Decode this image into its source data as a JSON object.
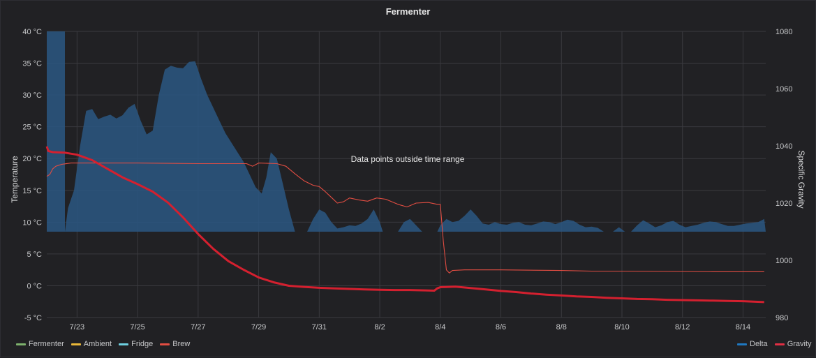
{
  "panel": {
    "title": "Fermenter"
  },
  "chart_data": {
    "type": "line",
    "title": "Fermenter",
    "annotation": "Data points outside time range",
    "x_axis": {
      "type": "time",
      "range": [
        "2020-07-22",
        "2020-08-15"
      ],
      "ticks": [
        "7/23",
        "7/25",
        "7/27",
        "7/29",
        "7/31",
        "8/2",
        "8/4",
        "8/6",
        "8/8",
        "8/10",
        "8/12",
        "8/14"
      ]
    },
    "y_left": {
      "label": "Temperature",
      "unit": "°C",
      "range": [
        -5,
        40
      ],
      "ticks": [
        "40 °C",
        "35 °C",
        "30 °C",
        "25 °C",
        "20 °C",
        "15 °C",
        "10 °C",
        "5 °C",
        "0 °C",
        "-5 °C"
      ]
    },
    "y_right": {
      "label": "Specific Gravity",
      "range": [
        980,
        1080
      ],
      "ticks": [
        "1080",
        "1060",
        "1040",
        "1020",
        "1000",
        "980"
      ]
    },
    "grid": true,
    "legend_left": [
      {
        "name": "Fermenter",
        "color": "#7eb26d"
      },
      {
        "name": "Ambient",
        "color": "#eab839"
      },
      {
        "name": "Fridge",
        "color": "#6ed0e0"
      },
      {
        "name": "Brew",
        "color": "#e24d42"
      }
    ],
    "legend_right": [
      {
        "name": "Delta",
        "color": "#1f78c1"
      },
      {
        "name": "Gravity",
        "color": "#e02f44"
      }
    ],
    "series": [
      {
        "name": "Delta",
        "axis": "left",
        "kind": "area",
        "base": 8.5,
        "color": "#2a5782",
        "segments": [
          [
            [
              22.0,
              40
            ],
            [
              22.6,
              40
            ],
            [
              22.6,
              8.5
            ]
          ],
          [
            [
              22.6,
              8.5
            ],
            [
              22.7,
              12.2
            ],
            [
              22.9,
              15
            ],
            [
              23.1,
              22
            ],
            [
              23.3,
              27.5
            ],
            [
              23.5,
              27.8
            ],
            [
              23.7,
              26.2
            ],
            [
              23.9,
              26.6
            ],
            [
              24.1,
              26.9
            ],
            [
              24.3,
              26.3
            ],
            [
              24.5,
              26.8
            ],
            [
              24.7,
              28
            ],
            [
              24.9,
              28.6
            ],
            [
              25.1,
              26
            ],
            [
              25.3,
              23.8
            ],
            [
              25.5,
              24.4
            ],
            [
              25.7,
              30
            ],
            [
              25.9,
              34
            ],
            [
              26.1,
              34.6
            ],
            [
              26.3,
              34.3
            ],
            [
              26.5,
              34.2
            ],
            [
              26.7,
              35.2
            ],
            [
              26.9,
              35.3
            ],
            [
              27.1,
              32.5
            ],
            [
              27.3,
              30
            ],
            [
              27.5,
              28
            ],
            [
              27.7,
              26
            ],
            [
              27.9,
              24
            ],
            [
              28.1,
              22.5
            ],
            [
              28.3,
              21
            ],
            [
              28.5,
              19.5
            ],
            [
              28.7,
              17.5
            ],
            [
              28.9,
              15.5
            ],
            [
              29.1,
              14.5
            ],
            [
              29.25,
              17
            ],
            [
              29.4,
              21
            ],
            [
              29.6,
              20
            ],
            [
              29.8,
              16
            ],
            [
              30.0,
              12
            ],
            [
              30.2,
              8.5
            ]
          ],
          [
            [
              30.6,
              8.5
            ],
            [
              30.8,
              10.5
            ],
            [
              31.0,
              12
            ],
            [
              31.2,
              11.5
            ],
            [
              31.4,
              10
            ],
            [
              31.6,
              9
            ],
            [
              31.8,
              9.2
            ],
            [
              32.0,
              9.5
            ],
            [
              32.2,
              9.4
            ],
            [
              32.4,
              9.8
            ],
            [
              32.6,
              10.5
            ],
            [
              32.8,
              12
            ],
            [
              33.0,
              10
            ],
            [
              33.1,
              8.5
            ]
          ],
          [
            [
              33.6,
              8.5
            ],
            [
              33.8,
              10
            ],
            [
              34.0,
              10.5
            ],
            [
              34.2,
              9.5
            ],
            [
              34.4,
              8.5
            ]
          ],
          [
            [
              34.9,
              8.5
            ],
            [
              35.0,
              9.5
            ],
            [
              35.2,
              10.5
            ],
            [
              35.4,
              10
            ],
            [
              35.6,
              10.2
            ],
            [
              35.8,
              11
            ],
            [
              36.0,
              12
            ],
            [
              36.2,
              11
            ],
            [
              36.4,
              9.8
            ],
            [
              36.6,
              9.6
            ],
            [
              36.8,
              10
            ],
            [
              37.0,
              9.7
            ],
            [
              37.2,
              9.6
            ],
            [
              37.4,
              9.9
            ],
            [
              37.6,
              10
            ],
            [
              37.8,
              9.6
            ],
            [
              38.0,
              9.5
            ],
            [
              38.2,
              9.8
            ],
            [
              38.4,
              10.1
            ],
            [
              38.6,
              10
            ],
            [
              38.8,
              9.7
            ],
            [
              39.0,
              10
            ],
            [
              39.2,
              10.4
            ],
            [
              39.4,
              10.2
            ],
            [
              39.6,
              9.6
            ],
            [
              39.8,
              9.2
            ],
            [
              40.0,
              9.3
            ],
            [
              40.2,
              9.1
            ],
            [
              40.4,
              8.5
            ]
          ],
          [
            [
              40.7,
              8.5
            ],
            [
              40.9,
              9.2
            ],
            [
              41.1,
              8.5
            ]
          ],
          [
            [
              41.3,
              8.5
            ],
            [
              41.5,
              9.5
            ],
            [
              41.7,
              10.3
            ],
            [
              41.9,
              9.8
            ],
            [
              42.1,
              9.2
            ],
            [
              42.3,
              9.5
            ],
            [
              42.5,
              10
            ],
            [
              42.7,
              10.2
            ],
            [
              42.9,
              9.6
            ],
            [
              43.1,
              9.2
            ],
            [
              43.3,
              9.4
            ],
            [
              43.5,
              9.6
            ],
            [
              43.7,
              9.9
            ],
            [
              43.9,
              10.1
            ],
            [
              44.1,
              10
            ],
            [
              44.3,
              9.7
            ],
            [
              44.5,
              9.4
            ],
            [
              44.7,
              9.4
            ],
            [
              44.9,
              9.6
            ],
            [
              45.1,
              9.8
            ],
            [
              45.3,
              9.9
            ],
            [
              45.5,
              10
            ],
            [
              45.7,
              10.5
            ],
            [
              45.75,
              8.5
            ]
          ]
        ]
      },
      {
        "name": "Brew",
        "axis": "left",
        "kind": "line",
        "color": "#e24d42",
        "points": [
          [
            22.0,
            17.2
          ],
          [
            22.1,
            17.5
          ],
          [
            22.2,
            18.4
          ],
          [
            22.3,
            18.8
          ],
          [
            22.5,
            19.1
          ],
          [
            22.8,
            19.3
          ],
          [
            23.5,
            19.3
          ],
          [
            25.0,
            19.3
          ],
          [
            27.0,
            19.2
          ],
          [
            28.6,
            19.2
          ],
          [
            28.8,
            18.8
          ],
          [
            29.0,
            19.3
          ],
          [
            29.6,
            19.2
          ],
          [
            29.9,
            18.8
          ],
          [
            30.2,
            17.6
          ],
          [
            30.5,
            16.5
          ],
          [
            30.8,
            15.8
          ],
          [
            31.0,
            15.6
          ],
          [
            31.2,
            14.8
          ],
          [
            31.4,
            13.9
          ],
          [
            31.6,
            13.0
          ],
          [
            31.8,
            13.2
          ],
          [
            32.0,
            13.8
          ],
          [
            32.3,
            13.5
          ],
          [
            32.6,
            13.3
          ],
          [
            32.9,
            13.8
          ],
          [
            33.2,
            13.6
          ],
          [
            33.6,
            12.8
          ],
          [
            33.9,
            12.4
          ],
          [
            34.2,
            13.0
          ],
          [
            34.6,
            13.1
          ],
          [
            34.9,
            12.8
          ],
          [
            35.0,
            12.8
          ],
          [
            35.1,
            7.0
          ],
          [
            35.2,
            2.5
          ],
          [
            35.3,
            2.0
          ],
          [
            35.4,
            2.4
          ],
          [
            35.8,
            2.5
          ],
          [
            37.0,
            2.5
          ],
          [
            39.0,
            2.4
          ],
          [
            40.0,
            2.3
          ],
          [
            41.0,
            2.3
          ],
          [
            44.0,
            2.2
          ],
          [
            45.7,
            2.2
          ]
        ]
      },
      {
        "name": "Gravity",
        "axis": "right",
        "kind": "line",
        "color": "#d4202f",
        "points": [
          [
            22.0,
            1039.8
          ],
          [
            22.05,
            1038.2
          ],
          [
            22.2,
            1037.8
          ],
          [
            22.6,
            1037.6
          ],
          [
            23.0,
            1036.9
          ],
          [
            23.5,
            1035.0
          ],
          [
            24.0,
            1032.0
          ],
          [
            24.5,
            1029.0
          ],
          [
            25.0,
            1026.6
          ],
          [
            25.5,
            1024.0
          ],
          [
            26.0,
            1020.2
          ],
          [
            26.5,
            1015.0
          ],
          [
            27.0,
            1009.2
          ],
          [
            27.5,
            1004.0
          ],
          [
            28.0,
            999.7
          ],
          [
            28.5,
            996.7
          ],
          [
            29.0,
            994.0
          ],
          [
            29.5,
            992.3
          ],
          [
            30.0,
            991.1
          ],
          [
            30.5,
            990.7
          ],
          [
            31.0,
            990.4
          ],
          [
            31.5,
            990.2
          ],
          [
            32.0,
            990.0
          ],
          [
            32.5,
            989.8
          ],
          [
            33.0,
            989.7
          ],
          [
            33.5,
            989.6
          ],
          [
            34.0,
            989.6
          ],
          [
            34.5,
            989.5
          ],
          [
            34.8,
            989.4
          ],
          [
            34.9,
            990.2
          ],
          [
            35.0,
            990.6
          ],
          [
            35.5,
            990.8
          ],
          [
            36.0,
            990.3
          ],
          [
            36.5,
            989.8
          ],
          [
            37.0,
            989.3
          ],
          [
            37.5,
            988.9
          ],
          [
            38.0,
            988.4
          ],
          [
            38.5,
            988.0
          ],
          [
            39.0,
            987.7
          ],
          [
            39.5,
            987.4
          ],
          [
            40.0,
            987.2
          ],
          [
            40.5,
            986.9
          ],
          [
            41.0,
            986.7
          ],
          [
            41.5,
            986.5
          ],
          [
            42.0,
            986.4
          ],
          [
            42.5,
            986.2
          ],
          [
            43.0,
            986.1
          ],
          [
            43.5,
            986.0
          ],
          [
            44.0,
            985.9
          ],
          [
            44.5,
            985.8
          ],
          [
            45.0,
            985.7
          ],
          [
            45.7,
            985.4
          ]
        ]
      }
    ]
  }
}
